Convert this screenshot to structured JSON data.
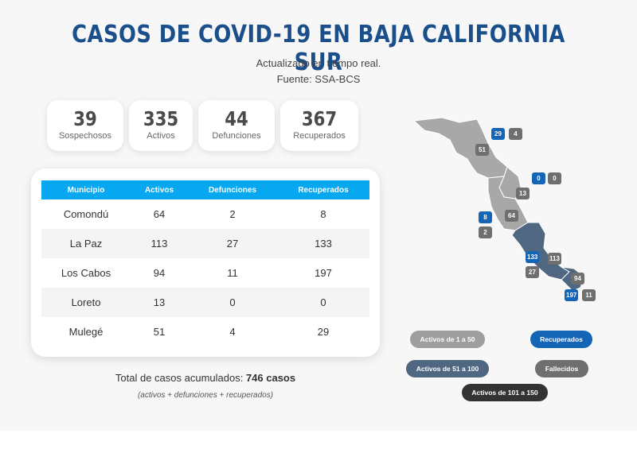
{
  "header": {
    "title": "CASOS DE COVID-19 EN BAJA CALIFORNIA SUR",
    "subtitle": "Actualizado en tiempo real.",
    "source": "Fuente: SSA-BCS"
  },
  "stats": [
    {
      "value": "39",
      "label": "Sospechosos"
    },
    {
      "value": "335",
      "label": "Activos"
    },
    {
      "value": "44",
      "label": "Defunciones"
    },
    {
      "value": "367",
      "label": "Recuperados"
    }
  ],
  "table": {
    "headers": [
      "Municipio",
      "Activos",
      "Defunciones",
      "Recuperados"
    ],
    "rows": [
      [
        "Comondú",
        "64",
        "2",
        "8"
      ],
      [
        "La Paz",
        "113",
        "27",
        "133"
      ],
      [
        "Los Cabos",
        "94",
        "11",
        "197"
      ],
      [
        "Loreto",
        "13",
        "0",
        "0"
      ],
      [
        "Mulegé",
        "51",
        "4",
        "29"
      ]
    ]
  },
  "summary": {
    "total_label": "Total de casos acumulados: ",
    "total_value": "746 casos",
    "note": "(activos + defunciones + recuperados)"
  },
  "map": {
    "badges": {
      "mulege_recuperados": "29",
      "mulege_defunciones": "4",
      "mulege_activos": "51",
      "loreto_recuperados": "0",
      "loreto_defunciones": "0",
      "loreto_activos": "13",
      "comondu_recuperados": "8",
      "comondu_activos": "64",
      "comondu_defunciones": "2",
      "lapaz_recuperados": "133",
      "lapaz_activos": "113",
      "lapaz_defunciones": "27",
      "loscabos_activos": "94",
      "loscabos_recuperados": "197",
      "loscabos_defunciones": "11"
    },
    "colors": {
      "range_1_50": "#9e9e9e",
      "range_51_100": "#4f6781",
      "range_101_150": "#333333",
      "recuperados": "#1565b7",
      "fallecidos": "#6f6f6f"
    }
  },
  "legend": {
    "range_1_50": "Activos de 1 a 50",
    "recuperados": "Recuperados",
    "range_51_100": "Activos de 51 a 100",
    "fallecidos": "Fallecidos",
    "range_101_150": "Activos de 101 a 150"
  }
}
